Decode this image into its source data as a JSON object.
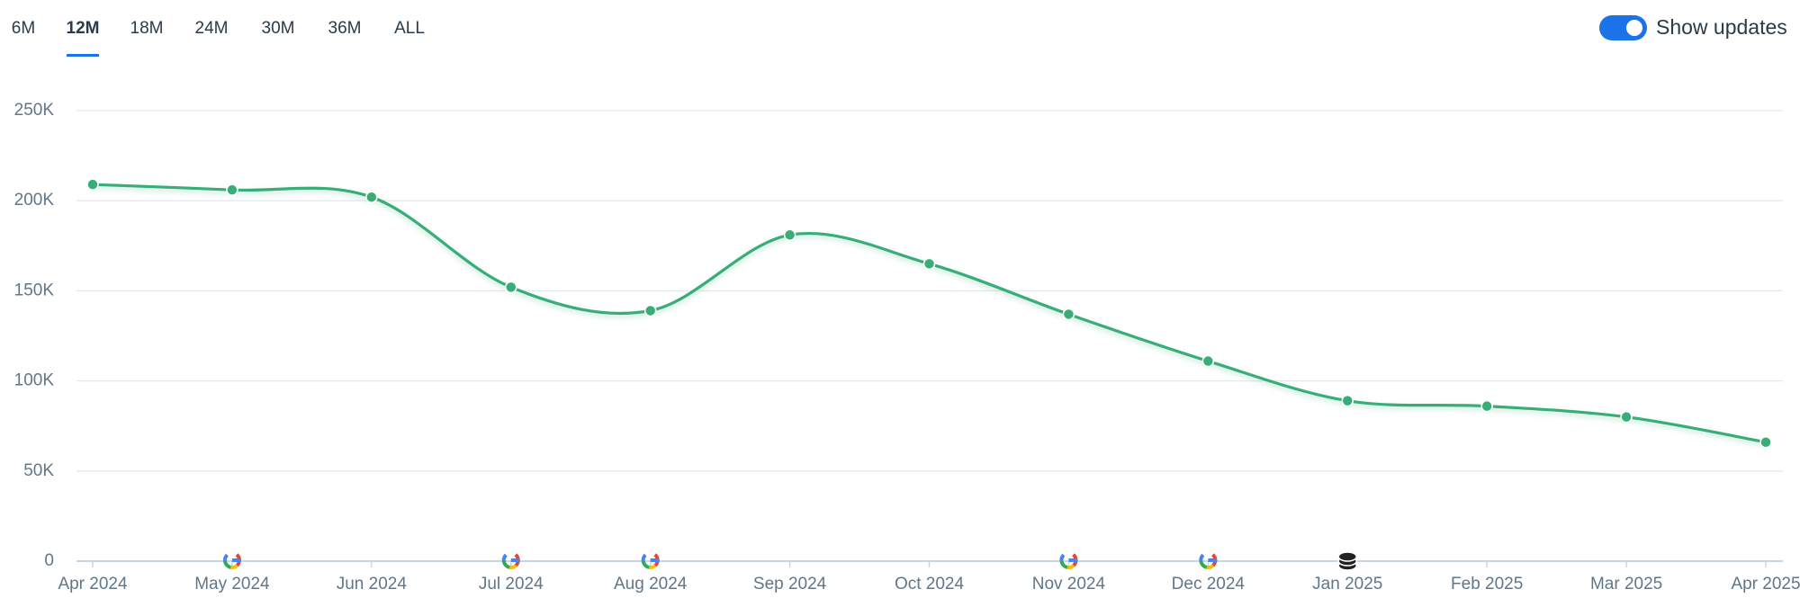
{
  "range_tabs": [
    "6M",
    "12M",
    "18M",
    "24M",
    "30M",
    "36M",
    "ALL"
  ],
  "selected_tab": 1,
  "toggle": {
    "label": "Show updates",
    "on": true
  },
  "chart_data": {
    "type": "line",
    "categories": [
      "Apr 2024",
      "May 2024",
      "Jun 2024",
      "Jul 2024",
      "Aug 2024",
      "Sep 2024",
      "Oct 2024",
      "Nov 2024",
      "Dec 2024",
      "Jan 2025",
      "Feb 2025",
      "Mar 2025",
      "Apr 2025"
    ],
    "series": [
      {
        "color": "#38ad78",
        "values": [
          209000,
          206000,
          202000,
          152000,
          139000,
          181000,
          165000,
          137000,
          111000,
          89000,
          86000,
          80000,
          66000
        ]
      }
    ],
    "ylim": [
      0,
      250000
    ],
    "yticks": [
      {
        "value": 0,
        "label": "0"
      },
      {
        "value": 50000,
        "label": "50K"
      },
      {
        "value": 100000,
        "label": "100K"
      },
      {
        "value": 150000,
        "label": "150K"
      },
      {
        "value": 200000,
        "label": "200K"
      },
      {
        "value": 250000,
        "label": "250K"
      }
    ],
    "grid": true,
    "smooth": true,
    "update_markers": [
      {
        "x": "May 2024",
        "kind": "google"
      },
      {
        "x": "Jul 2024",
        "kind": "google"
      },
      {
        "x": "Aug 2024",
        "kind": "google"
      },
      {
        "x": "Nov 2024",
        "kind": "google"
      },
      {
        "x": "Dec 2024",
        "kind": "google"
      },
      {
        "x": "Jan 2025",
        "kind": "database"
      }
    ]
  }
}
